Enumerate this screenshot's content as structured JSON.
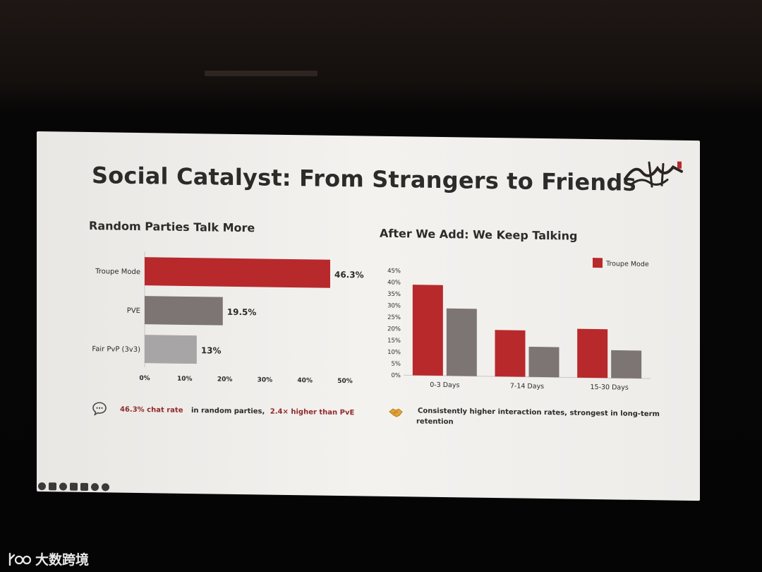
{
  "slide": {
    "title": "Social Catalyst: From Strangers to Friends",
    "left_section_title": "Random Parties Talk More",
    "right_section_title": "After We Add: We Keep Talking",
    "left_note": {
      "icon": "speech-bubble-icon",
      "highlight_1": "46.3% chat rate",
      "text_1": "in random parties,",
      "highlight_2": "2.4× higher than PvE"
    },
    "right_note": {
      "icon": "handshake-icon",
      "line_1": "Consistently higher interaction rates, strongest in long-term",
      "line_2": "retention"
    },
    "logo_icon": "game-logo-calligraphy"
  },
  "watermark": {
    "text": "大数跨境",
    "icon": "brand-logo-icon"
  },
  "colors": {
    "red": "#b8292c",
    "gray_dark": "#7c7573",
    "gray_light": "#a8a5a6",
    "text": "#2d2b2a"
  },
  "chart_data": [
    {
      "type": "bar",
      "orientation": "horizontal",
      "title": "Random Parties Talk More",
      "categories": [
        "Troupe Mode",
        "PVE",
        "Fair PvP (3v3)"
      ],
      "values": [
        46.3,
        19.5,
        13
      ],
      "value_labels": [
        "46.3%",
        "19.5%",
        "13%"
      ],
      "xlim": [
        0,
        50
      ],
      "xticks": [
        "0%",
        "10%",
        "20%",
        "30%",
        "40%",
        "50%"
      ],
      "grid": false,
      "legend": "none"
    },
    {
      "type": "bar",
      "orientation": "vertical",
      "title": "After We Add: We Keep Talking",
      "categories": [
        "0-3 Days",
        "7-14 Days",
        "15-30 Days"
      ],
      "series": [
        {
          "name": "Troupe Mode",
          "values": [
            39,
            20,
            21
          ]
        },
        {
          "values": [
            29,
            13,
            12
          ]
        }
      ],
      "ylim": [
        0,
        45
      ],
      "yticks": [
        "0%",
        "5%",
        "10%",
        "15%",
        "20%",
        "25%",
        "30%",
        "35%",
        "40%",
        "45%"
      ],
      "legend_label": "Troupe Mode",
      "legend": "top-right",
      "grid": false
    }
  ]
}
